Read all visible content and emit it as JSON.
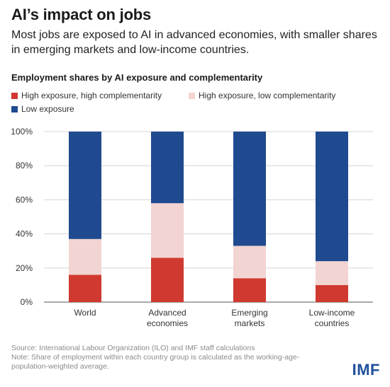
{
  "header": {
    "title": "AI’s impact on jobs",
    "subtitle": "Most jobs are exposed to AI in advanced economies, with smaller shares in emerging markets and low-income countries."
  },
  "footer": {
    "source": "Source: International Labour Organization (ILO) and IMF staff calculations",
    "note": "Note: Share of employment within each country group is calculated as the working-age-population-weighted average.",
    "logo": "IMF"
  },
  "chart_data": {
    "type": "bar",
    "stacked": true,
    "title": "Employment shares by AI exposure and complementarity",
    "categories": [
      [
        "World"
      ],
      [
        "Advanced",
        "economies"
      ],
      [
        "Emerging",
        "markets"
      ],
      [
        "Low-income",
        "countries"
      ]
    ],
    "series": [
      {
        "name": "High exposure, high complementarity",
        "color": "#d0392f",
        "values": [
          16,
          26,
          14,
          10
        ]
      },
      {
        "name": "High exposure, low complementarity",
        "color": "#f2d4d3",
        "values": [
          21,
          32,
          19,
          14
        ]
      },
      {
        "name": "Low exposure",
        "color": "#1f4a8f",
        "values": [
          63,
          42,
          67,
          76
        ]
      }
    ],
    "ylim": [
      0,
      100
    ],
    "yticks": [
      "0%",
      "20%",
      "40%",
      "60%",
      "80%",
      "100%"
    ],
    "grid": true,
    "legend_position": "top-left"
  }
}
